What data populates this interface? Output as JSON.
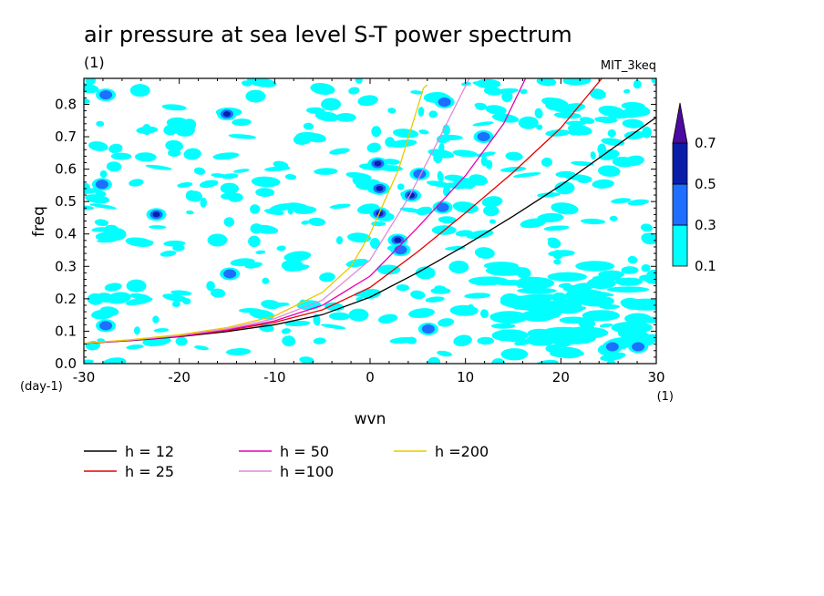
{
  "chart_data": {
    "type": "contour",
    "title": "air pressure at sea level S-T power spectrum",
    "subtitle": "(1)",
    "model_label": "MIT_3keq",
    "xlabel": "wvn",
    "ylabel": "freq",
    "x_unit": "(1)",
    "y_unit": "(day-1)",
    "xlim": [
      -30,
      30
    ],
    "ylim": [
      0,
      0.88
    ],
    "x_ticks": [
      -30,
      -20,
      -10,
      0,
      10,
      20,
      30
    ],
    "x_tick_labels": [
      "-30",
      "-20",
      "-10",
      "0",
      "10",
      "20",
      "30"
    ],
    "y_ticks": [
      0.0,
      0.1,
      0.2,
      0.3,
      0.4,
      0.5,
      0.6,
      0.7,
      0.8
    ],
    "y_tick_labels": [
      "0.0",
      "0.1",
      "0.2",
      "0.3",
      "0.4",
      "0.5",
      "0.6",
      "0.7",
      "0.8"
    ],
    "colorbar": {
      "levels": [
        0.1,
        0.3,
        0.5,
        0.7
      ],
      "labels": [
        "0.1",
        "0.3",
        "0.5",
        "0.7"
      ],
      "colors": [
        "#00ffff",
        "#1e6eff",
        "#0a1eaa",
        "#4b0aa0"
      ]
    },
    "contour_regions": [
      {
        "x": -27.7,
        "y": 0.829,
        "level": 1
      },
      {
        "x": -24.1,
        "y": 0.843,
        "level": 0
      },
      {
        "x": -15.0,
        "y": 0.77,
        "level": 2
      },
      {
        "x": -12.0,
        "y": 0.825,
        "level": 0
      },
      {
        "x": -19.4,
        "y": 0.72,
        "level": 0
      },
      {
        "x": -4.1,
        "y": 0.8,
        "level": 0
      },
      {
        "x": -28.1,
        "y": 0.553,
        "level": 1
      },
      {
        "x": -22.4,
        "y": 0.46,
        "level": 2
      },
      {
        "x": -26.6,
        "y": 0.399,
        "level": 0
      },
      {
        "x": -16.0,
        "y": 0.381,
        "level": 0
      },
      {
        "x": -14.7,
        "y": 0.277,
        "level": 1
      },
      {
        "x": -27.7,
        "y": 0.117,
        "level": 1
      },
      {
        "x": -24.5,
        "y": 0.24,
        "level": 0
      },
      {
        "x": 0.8,
        "y": 0.617,
        "level": 2
      },
      {
        "x": 1.0,
        "y": 0.54,
        "level": 2
      },
      {
        "x": 1.0,
        "y": 0.463,
        "level": 2
      },
      {
        "x": 2.9,
        "y": 0.381,
        "level": 2
      },
      {
        "x": 3.2,
        "y": 0.351,
        "level": 1
      },
      {
        "x": 4.3,
        "y": 0.519,
        "level": 2
      },
      {
        "x": 5.2,
        "y": 0.585,
        "level": 1
      },
      {
        "x": 7.6,
        "y": 0.482,
        "level": 1
      },
      {
        "x": 7.8,
        "y": 0.807,
        "level": 1
      },
      {
        "x": 11.9,
        "y": 0.7,
        "level": 1
      },
      {
        "x": 5.8,
        "y": 0.28,
        "level": 0
      },
      {
        "x": 6.1,
        "y": 0.107,
        "level": 1
      },
      {
        "x": 9.3,
        "y": 0.298,
        "level": 0
      },
      {
        "x": 16.6,
        "y": 0.743,
        "level": 0
      },
      {
        "x": 19.4,
        "y": 0.8,
        "level": 0
      },
      {
        "x": 20.4,
        "y": 0.542,
        "level": 0
      },
      {
        "x": 28.1,
        "y": 0.052,
        "level": 1
      },
      {
        "x": 25.4,
        "y": 0.052,
        "level": 1
      },
      {
        "x": 20.2,
        "y": 0.07,
        "level": 0
      },
      {
        "x": 14.7,
        "y": 0.197,
        "level": 0
      },
      {
        "x": -1.2,
        "y": 0.15,
        "level": 0
      }
    ],
    "series": [
      {
        "name": "h = 12",
        "color": "#000000",
        "points": [
          [
            -30,
            0.062
          ],
          [
            -25,
            0.071
          ],
          [
            -20,
            0.083
          ],
          [
            -15,
            0.099
          ],
          [
            -10,
            0.12
          ],
          [
            -5,
            0.151
          ],
          [
            0,
            0.205
          ],
          [
            5,
            0.281
          ],
          [
            10,
            0.365
          ],
          [
            15,
            0.455
          ],
          [
            20,
            0.55
          ],
          [
            25,
            0.655
          ],
          [
            30,
            0.76
          ]
        ]
      },
      {
        "name": "h = 25",
        "color": "#e60000",
        "points": [
          [
            -30,
            0.062
          ],
          [
            -25,
            0.072
          ],
          [
            -20,
            0.084
          ],
          [
            -15,
            0.102
          ],
          [
            -10,
            0.127
          ],
          [
            -5,
            0.166
          ],
          [
            0,
            0.235
          ],
          [
            5,
            0.345
          ],
          [
            10,
            0.465
          ],
          [
            15,
            0.59
          ],
          [
            20,
            0.727
          ],
          [
            24.3,
            0.88
          ]
        ]
      },
      {
        "name": "h = 50",
        "color": "#e600b4",
        "points": [
          [
            -30,
            0.062
          ],
          [
            -25,
            0.072
          ],
          [
            -20,
            0.085
          ],
          [
            -15,
            0.104
          ],
          [
            -10,
            0.132
          ],
          [
            -5,
            0.18
          ],
          [
            0,
            0.27
          ],
          [
            5,
            0.42
          ],
          [
            10,
            0.58
          ],
          [
            14,
            0.74
          ],
          [
            16.3,
            0.88
          ]
        ]
      },
      {
        "name": "h =100",
        "color": "#dc8cdc",
        "points": [
          [
            -30,
            0.063
          ],
          [
            -25,
            0.073
          ],
          [
            -20,
            0.087
          ],
          [
            -15,
            0.107
          ],
          [
            -10,
            0.139
          ],
          [
            -5,
            0.196
          ],
          [
            0,
            0.32
          ],
          [
            4,
            0.51
          ],
          [
            7,
            0.68
          ],
          [
            10.4,
            0.88
          ]
        ]
      },
      {
        "name": "h =200",
        "color": "#ebc800",
        "points": [
          [
            -30,
            0.063
          ],
          [
            -25,
            0.074
          ],
          [
            -20,
            0.089
          ],
          [
            -15,
            0.111
          ],
          [
            -10,
            0.147
          ],
          [
            -5,
            0.22
          ],
          [
            -2,
            0.3
          ],
          [
            0,
            0.4
          ],
          [
            3,
            0.6
          ],
          [
            5.6,
            0.85
          ],
          [
            6.0,
            0.86
          ]
        ]
      }
    ],
    "legend": [
      {
        "label": "h = 12",
        "color": "#000000"
      },
      {
        "label": "h = 25",
        "color": "#e60000"
      },
      {
        "label": "h = 50",
        "color": "#e600b4"
      },
      {
        "label": "h =100",
        "color": "#dc8cdc"
      },
      {
        "label": "h =200",
        "color": "#ebc800"
      }
    ],
    "grid": false,
    "legend_position": "bottom"
  }
}
